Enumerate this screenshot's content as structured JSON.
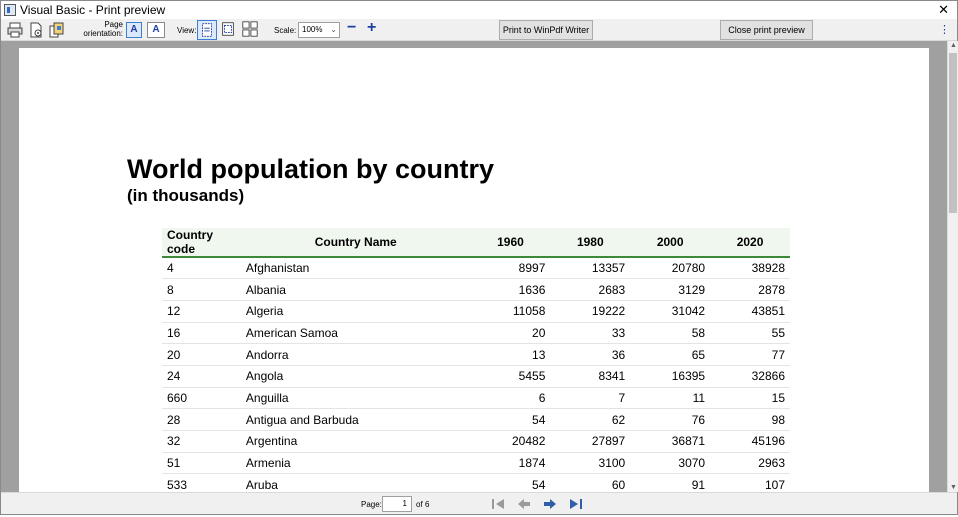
{
  "window": {
    "title": "Visual Basic - Print preview",
    "close_glyph": "✕"
  },
  "toolbar": {
    "orientation_label": "Page orientation:",
    "portrait_glyph": "A",
    "landscape_glyph": "A",
    "view_label": "View:",
    "scale_label": "Scale:",
    "scale_value": "100%",
    "zoom_out": "−",
    "zoom_in": "+",
    "print_button": "Print to WinPdf Writer",
    "close_button": "Close print preview",
    "more_glyph": "⋮"
  },
  "document": {
    "title": "World population by country",
    "subtitle": "(in thousands)",
    "columns": [
      "Country code",
      "Country Name",
      "1960",
      "1980",
      "2000",
      "2020"
    ],
    "rows": [
      [
        "4",
        "Afghanistan",
        "8997",
        "13357",
        "20780",
        "38928"
      ],
      [
        "8",
        "Albania",
        "1636",
        "2683",
        "3129",
        "2878"
      ],
      [
        "12",
        "Algeria",
        "11058",
        "19222",
        "31042",
        "43851"
      ],
      [
        "16",
        "American Samoa",
        "20",
        "33",
        "58",
        "55"
      ],
      [
        "20",
        "Andorra",
        "13",
        "36",
        "65",
        "77"
      ],
      [
        "24",
        "Angola",
        "5455",
        "8341",
        "16395",
        "32866"
      ],
      [
        "660",
        "Anguilla",
        "6",
        "7",
        "11",
        "15"
      ],
      [
        "28",
        "Antigua and Barbuda",
        "54",
        "62",
        "76",
        "98"
      ],
      [
        "32",
        "Argentina",
        "20482",
        "27897",
        "36871",
        "45196"
      ],
      [
        "51",
        "Armenia",
        "1874",
        "3100",
        "3070",
        "2963"
      ],
      [
        "533",
        "Aruba",
        "54",
        "60",
        "91",
        "107"
      ]
    ]
  },
  "navigation": {
    "page_label": "Page:",
    "current_page": "1",
    "of_label": "of",
    "total_pages": "6"
  },
  "colors": {
    "header_underline": "#3a8a3a",
    "header_background": "#f0f7ef",
    "accent_blue": "#1c3fa0",
    "preview_background": "#a0a0a0"
  }
}
